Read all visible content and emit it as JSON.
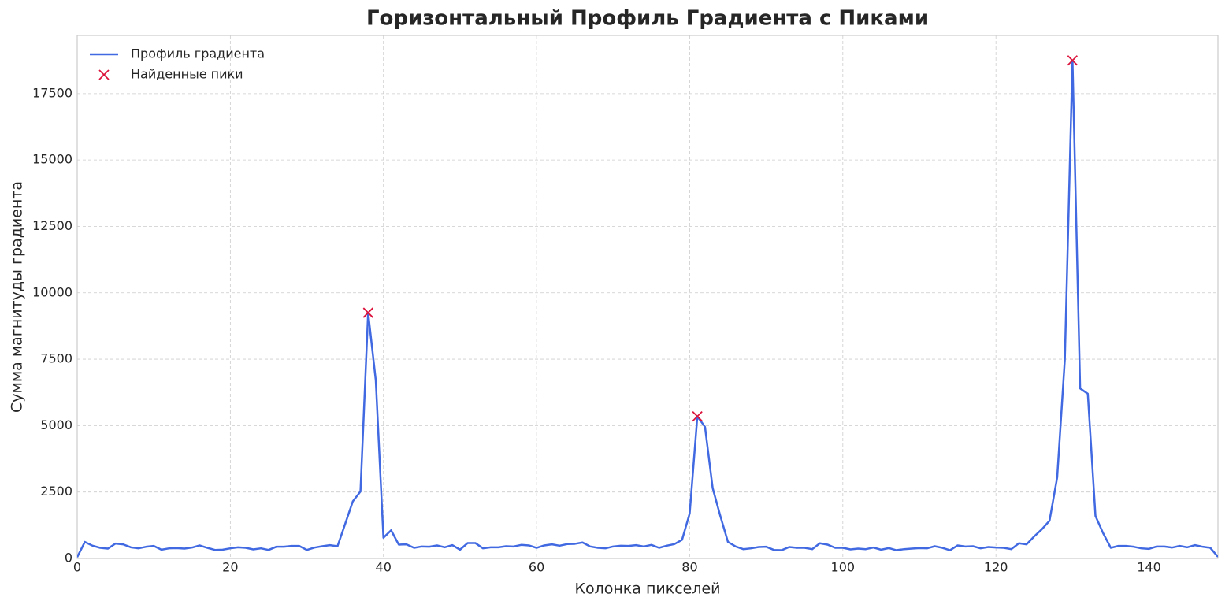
{
  "chart_data": {
    "type": "line",
    "title": "Горизонтальный Профиль Градиента с Пиками",
    "xlabel": "Колонка пикселей",
    "ylabel": "Сумма магнитуды градиента",
    "xlim": [
      0,
      149
    ],
    "ylim": [
      0,
      19690
    ],
    "xticks": [
      0,
      20,
      40,
      60,
      80,
      100,
      120,
      140
    ],
    "yticks": [
      0,
      2500,
      5000,
      7500,
      10000,
      12500,
      15000,
      17500
    ],
    "grid": true,
    "legend": "upper left",
    "series": [
      {
        "name": "Профиль градиента",
        "color": "#4169e1",
        "kind": "line",
        "x": [
          0,
          1,
          2,
          3,
          4,
          5,
          6,
          7,
          8,
          9,
          10,
          11,
          12,
          13,
          14,
          15,
          16,
          17,
          18,
          19,
          20,
          21,
          22,
          23,
          24,
          25,
          26,
          27,
          28,
          29,
          30,
          31,
          32,
          33,
          34,
          35,
          36,
          37,
          38,
          39,
          40,
          41,
          42,
          43,
          44,
          45,
          46,
          47,
          48,
          49,
          50,
          51,
          52,
          53,
          54,
          55,
          56,
          57,
          58,
          59,
          60,
          61,
          62,
          63,
          64,
          65,
          66,
          67,
          68,
          69,
          70,
          71,
          72,
          73,
          74,
          75,
          76,
          77,
          78,
          79,
          80,
          81,
          82,
          83,
          84,
          85,
          86,
          87,
          88,
          89,
          90,
          91,
          92,
          93,
          94,
          95,
          96,
          97,
          98,
          99,
          100,
          101,
          102,
          103,
          104,
          105,
          106,
          107,
          108,
          109,
          110,
          111,
          112,
          113,
          114,
          115,
          116,
          117,
          118,
          119,
          120,
          121,
          122,
          123,
          124,
          125,
          126,
          127,
          128,
          129,
          130,
          131,
          132,
          133,
          134,
          135,
          136,
          137,
          138,
          139,
          140,
          141,
          142,
          143,
          144,
          145,
          146,
          147,
          148,
          149
        ],
        "values": [
          50,
          620,
          480,
          400,
          370,
          560,
          530,
          420,
          380,
          440,
          470,
          330,
          380,
          390,
          370,
          410,
          490,
          400,
          320,
          330,
          380,
          420,
          400,
          340,
          380,
          320,
          440,
          440,
          470,
          470,
          320,
          410,
          460,
          500,
          460,
          1300,
          2150,
          2520,
          9250,
          6700,
          780,
          1060,
          520,
          530,
          400,
          450,
          440,
          490,
          420,
          500,
          330,
          580,
          580,
          380,
          420,
          420,
          460,
          450,
          510,
          490,
          400,
          490,
          530,
          480,
          540,
          550,
          600,
          450,
          400,
          380,
          450,
          480,
          470,
          500,
          450,
          510,
          400,
          480,
          540,
          700,
          1700,
          5350,
          4950,
          2650,
          1600,
          620,
          450,
          350,
          380,
          430,
          440,
          320,
          310,
          430,
          400,
          400,
          350,
          570,
          520,
          400,
          400,
          340,
          370,
          350,
          410,
          330,
          390,
          310,
          350,
          370,
          390,
          380,
          460,
          400,
          310,
          490,
          450,
          460,
          380,
          430,
          410,
          400,
          350,
          570,
          530,
          830,
          1100,
          1420,
          3050,
          7500,
          18750,
          6400,
          6200,
          1600,
          950,
          400,
          470,
          470,
          440,
          380,
          360,
          450,
          450,
          410,
          470,
          420,
          500,
          440,
          400,
          60
        ]
      },
      {
        "name": "Найденные пики",
        "color": "#dc143c",
        "kind": "marker",
        "x": [
          38,
          81,
          130
        ],
        "values": [
          9250,
          5350,
          18750
        ]
      }
    ]
  }
}
